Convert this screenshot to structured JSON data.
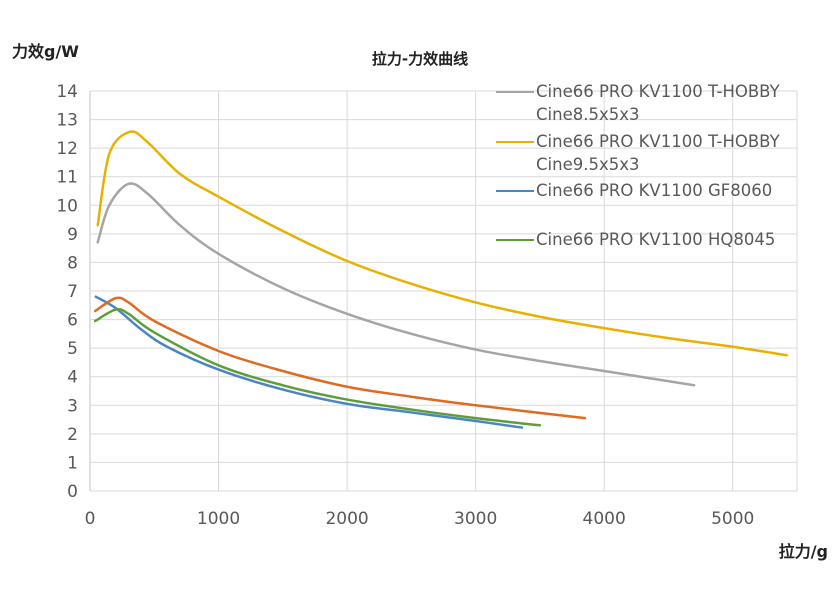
{
  "chart_data": {
    "type": "line",
    "title": "拉力-力效曲线",
    "xlabel": "拉力/g",
    "ylabel": "力效g/W",
    "xlim": [
      0,
      5500
    ],
    "ylim": [
      0,
      14
    ],
    "xticks": [
      0,
      1000,
      2000,
      3000,
      4000,
      5000
    ],
    "yticks": [
      0,
      1,
      2,
      3,
      4,
      5,
      6,
      7,
      8,
      9,
      10,
      11,
      12,
      13,
      14
    ],
    "grid": true,
    "legend_position": "top-right",
    "series": [
      {
        "name": "Cine66 PRO KV1100 T-HOBBY Cine8.5x5x3",
        "color": "#A5A5A5",
        "x": [
          60,
          150,
          300,
          450,
          700,
          1000,
          1500,
          2000,
          2500,
          3000,
          3500,
          4000,
          4700
        ],
        "y": [
          8.7,
          10.0,
          10.75,
          10.4,
          9.3,
          8.3,
          7.1,
          6.2,
          5.5,
          4.95,
          4.55,
          4.2,
          3.7
        ]
      },
      {
        "name": "Cine66 PRO KV1100 T-HOBBY Cine9.5x5x3",
        "color": "#E8B100",
        "x": [
          60,
          150,
          310,
          450,
          700,
          1000,
          1500,
          2000,
          2500,
          3000,
          3500,
          4000,
          4500,
          5000,
          5420
        ],
        "y": [
          9.3,
          11.8,
          12.57,
          12.2,
          11.1,
          10.3,
          9.1,
          8.05,
          7.25,
          6.6,
          6.1,
          5.7,
          5.35,
          5.05,
          4.75
        ]
      },
      {
        "name": "Cine66 PRO KV1100 GF8060",
        "color": "#4A86C5",
        "x": [
          45,
          200,
          400,
          600,
          1000,
          1500,
          2000,
          2500,
          3000,
          3360
        ],
        "y": [
          6.8,
          6.4,
          5.65,
          5.05,
          4.25,
          3.55,
          3.05,
          2.75,
          2.45,
          2.22
        ]
      },
      {
        "name": "Cine66 PRO KV1100 HQ8045",
        "color": "#5E9E3A",
        "x": [
          40,
          200,
          300,
          500,
          1000,
          1500,
          2000,
          2500,
          3000,
          3500
        ],
        "y": [
          5.95,
          6.35,
          6.2,
          5.55,
          4.4,
          3.7,
          3.2,
          2.85,
          2.55,
          2.3
        ]
      },
      {
        "color": "#E06A20",
        "x": [
          40,
          200,
          300,
          500,
          1000,
          1500,
          2000,
          2500,
          3000,
          3850
        ],
        "y": [
          6.3,
          6.75,
          6.6,
          5.95,
          4.9,
          4.2,
          3.65,
          3.3,
          3.0,
          2.55
        ]
      }
    ]
  }
}
